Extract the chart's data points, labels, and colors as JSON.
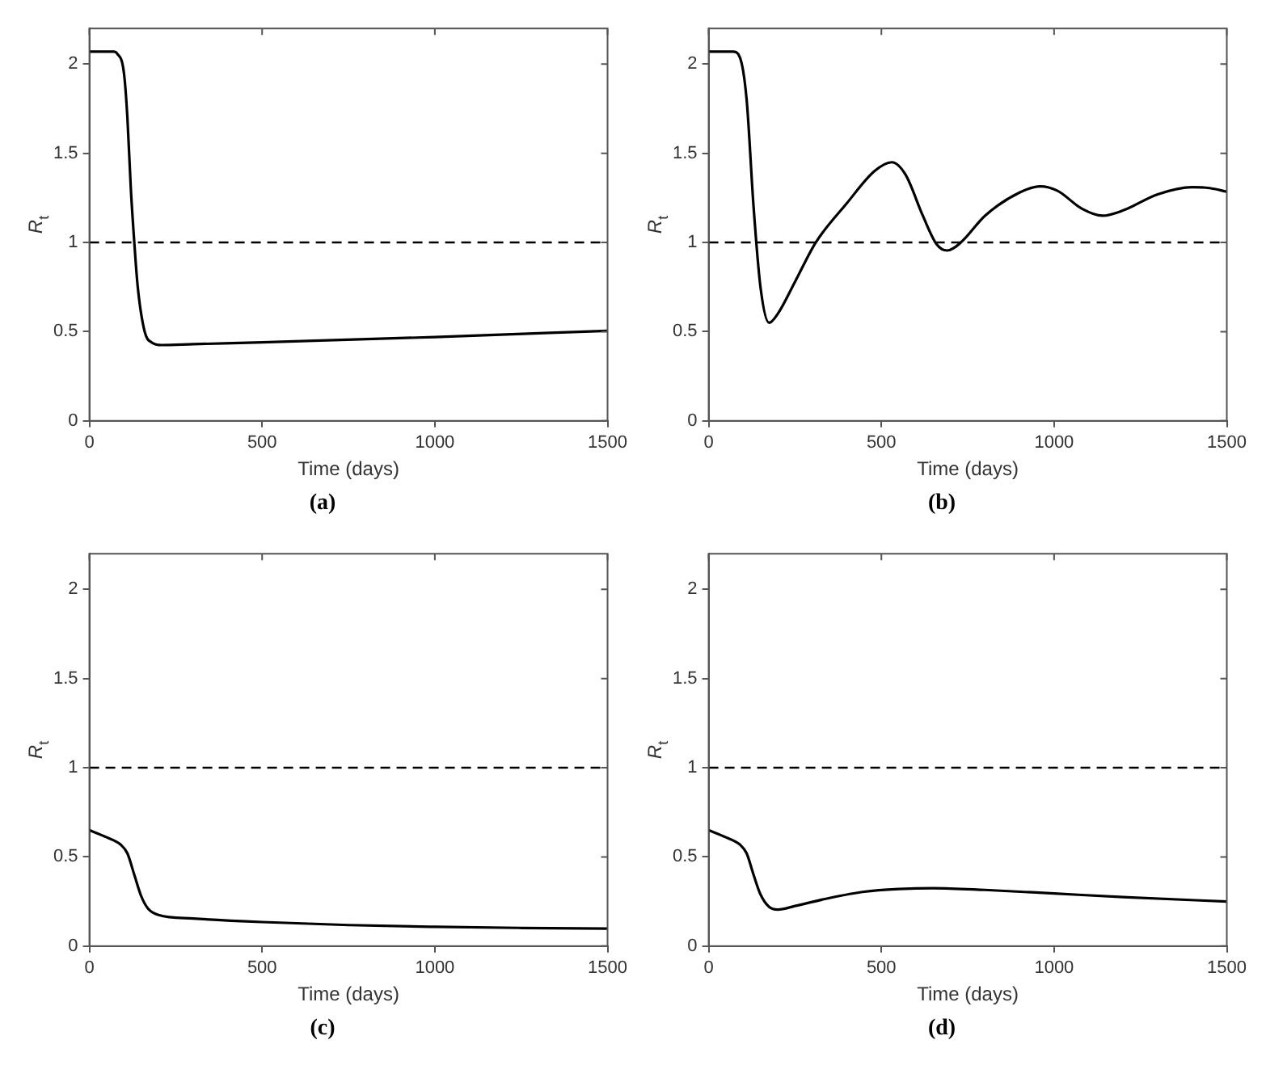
{
  "chart_data": [
    {
      "type": "line",
      "xlabel": "Time (days)",
      "ylabel": "R$_{t}$",
      "xlim": [
        0,
        1500
      ],
      "ylim": [
        0,
        2.2
      ],
      "xticks": [
        0,
        500,
        1000,
        1500
      ],
      "yticks": [
        0,
        0.5,
        1,
        1.5,
        2
      ],
      "grid": false,
      "legend": false,
      "annotations": [
        "(a)"
      ],
      "ref_lines": [
        {
          "axis": "y",
          "value": 1,
          "color": "#000000",
          "line_style": "dashed"
        }
      ],
      "series": [
        {
          "color": "#000000",
          "x": [
            0,
            70,
            80,
            100,
            110,
            120,
            130,
            140,
            160,
            180,
            210,
            300,
            500,
            1000,
            1500
          ],
          "values": [
            2.07,
            2.07,
            2.06,
            1.95,
            1.7,
            1.3,
            1.0,
            0.75,
            0.5,
            0.44,
            0.425,
            0.43,
            0.44,
            0.47,
            0.505
          ]
        }
      ]
    },
    {
      "type": "line",
      "xlabel": "Time (days)",
      "ylabel": "R$_{t}$",
      "xlim": [
        0,
        1500
      ],
      "ylim": [
        0,
        2.2
      ],
      "xticks": [
        0,
        500,
        1000,
        1500
      ],
      "yticks": [
        0,
        0.5,
        1,
        1.5,
        2
      ],
      "grid": false,
      "legend": false,
      "annotations": [
        "(b)"
      ],
      "ref_lines": [
        {
          "axis": "y",
          "value": 1,
          "color": "#000000",
          "line_style": "dashed"
        }
      ],
      "series": [
        {
          "color": "#000000",
          "x": [
            0,
            70,
            90,
            110,
            130,
            150,
            175,
            200,
            250,
            310,
            400,
            480,
            530,
            570,
            620,
            660,
            690,
            730,
            800,
            900,
            960,
            1010,
            1080,
            1140,
            1200,
            1300,
            1400,
            1450,
            1500
          ],
          "values": [
            2.07,
            2.07,
            2.04,
            1.8,
            1.2,
            0.75,
            0.55,
            0.6,
            0.78,
            1.0,
            1.22,
            1.4,
            1.45,
            1.38,
            1.15,
            0.99,
            0.955,
            1.0,
            1.15,
            1.28,
            1.315,
            1.29,
            1.19,
            1.15,
            1.18,
            1.27,
            1.31,
            1.305,
            1.285
          ]
        }
      ]
    },
    {
      "type": "line",
      "xlabel": "Time (days)",
      "ylabel": "R$_{t}$",
      "xlim": [
        0,
        1500
      ],
      "ylim": [
        0,
        2.2
      ],
      "xticks": [
        0,
        500,
        1000,
        1500
      ],
      "yticks": [
        0,
        0.5,
        1,
        1.5,
        2
      ],
      "grid": false,
      "legend": false,
      "annotations": [
        "(c)"
      ],
      "ref_lines": [
        {
          "axis": "y",
          "value": 1,
          "color": "#000000",
          "line_style": "dashed"
        }
      ],
      "series": [
        {
          "color": "#000000",
          "x": [
            0,
            50,
            90,
            110,
            130,
            150,
            170,
            200,
            300,
            500,
            750,
            1000,
            1250,
            1500
          ],
          "values": [
            0.65,
            0.61,
            0.57,
            0.52,
            0.4,
            0.28,
            0.21,
            0.175,
            0.155,
            0.135,
            0.118,
            0.108,
            0.102,
            0.098
          ]
        }
      ]
    },
    {
      "type": "line",
      "xlabel": "Time (days)",
      "ylabel": "R$_{t}$",
      "xlim": [
        0,
        1500
      ],
      "ylim": [
        0,
        2.2
      ],
      "xticks": [
        0,
        500,
        1000,
        1500
      ],
      "yticks": [
        0,
        0.5,
        1,
        1.5,
        2
      ],
      "grid": false,
      "legend": false,
      "annotations": [
        "(d)"
      ],
      "ref_lines": [
        {
          "axis": "y",
          "value": 1,
          "color": "#000000",
          "line_style": "dashed"
        }
      ],
      "series": [
        {
          "color": "#000000",
          "x": [
            0,
            50,
            90,
            110,
            130,
            150,
            175,
            200,
            250,
            350,
            450,
            550,
            650,
            800,
            1000,
            1200,
            1500
          ],
          "values": [
            0.65,
            0.61,
            0.57,
            0.52,
            0.4,
            0.29,
            0.22,
            0.205,
            0.225,
            0.27,
            0.305,
            0.32,
            0.325,
            0.315,
            0.295,
            0.275,
            0.25
          ]
        }
      ]
    }
  ]
}
